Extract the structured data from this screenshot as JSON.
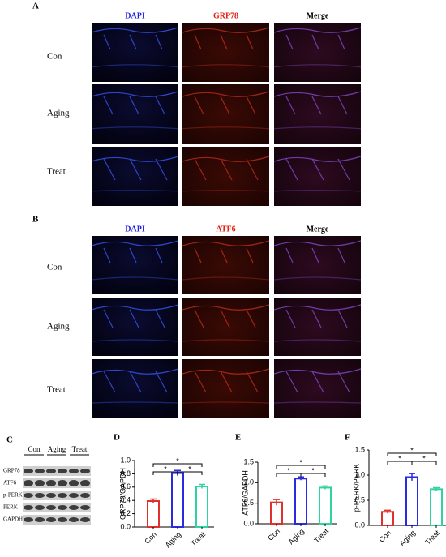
{
  "panel_a": {
    "label": "A",
    "columns": [
      "DAPI",
      "GRP78",
      "Merge"
    ],
    "rows": [
      "Con",
      "Aging",
      "Treat"
    ]
  },
  "panel_b": {
    "label": "B",
    "columns": [
      "DAPI",
      "ATF6",
      "Merge"
    ],
    "rows": [
      "Con",
      "Aging",
      "Treat"
    ]
  },
  "panel_c": {
    "label": "C",
    "lanes": [
      "Con",
      "Aging",
      "Treat"
    ],
    "proteins": [
      "GRP78",
      "ATF6",
      "p-PERK",
      "PERK",
      "GAPDH"
    ]
  },
  "chart_data": [
    {
      "type": "bar",
      "panel_label": "D",
      "y_label": "GRP78/GAPDH",
      "categories": [
        "Con",
        "Aging",
        "Treat"
      ],
      "values": [
        0.39,
        0.81,
        0.61
      ],
      "errors": [
        0.03,
        0.04,
        0.03
      ],
      "colors": [
        "#e0302c",
        "#2a2ae0",
        "#2ed3a0"
      ],
      "ylim": [
        0,
        1.0
      ],
      "yticks": [
        {
          "value": 0,
          "label": "0.0"
        },
        0.2,
        0.4,
        0.6,
        0.8,
        {
          "value": 1,
          "label": "1.0"
        }
      ],
      "significance": [
        "*",
        "*",
        "*"
      ]
    },
    {
      "type": "bar",
      "panel_label": "E",
      "y_label": "ATF6/GAPDH",
      "categories": [
        "Con",
        "Aging",
        "Treat"
      ],
      "values": [
        0.52,
        1.1,
        0.88
      ],
      "errors": [
        0.07,
        0.04,
        0.04
      ],
      "colors": [
        "#e0302c",
        "#2a2ae0",
        "#2ed3a0"
      ],
      "ylim": [
        0,
        1.5
      ],
      "yticks": [
        {
          "value": 0,
          "label": "0.0"
        },
        0.5,
        {
          "value": 1,
          "label": "1.0"
        },
        1.5
      ],
      "significance": [
        "*",
        "*",
        "*"
      ]
    },
    {
      "type": "bar",
      "panel_label": "F",
      "y_label": "p-PERK/PERK",
      "categories": [
        "Con",
        "Aging",
        "Treat"
      ],
      "values": [
        0.27,
        0.96,
        0.72
      ],
      "errors": [
        0.03,
        0.07,
        0.03
      ],
      "colors": [
        "#e0302c",
        "#2a2ae0",
        "#2ed3a0"
      ],
      "ylim": [
        0,
        1.5
      ],
      "yticks": [
        {
          "value": 0,
          "label": "0.0"
        },
        0.5,
        {
          "value": 1,
          "label": "1.0"
        },
        1.5
      ],
      "significance": [
        "*",
        "*",
        "*"
      ]
    }
  ]
}
